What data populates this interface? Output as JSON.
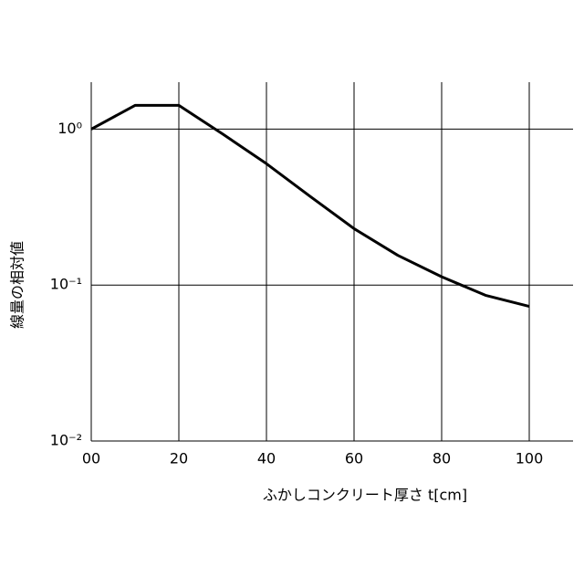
{
  "chart_data": {
    "type": "line",
    "xlabel": "ふかしコンクリート厚さ t[cm]",
    "ylabel": "線量の相対値",
    "x": [
      0,
      10,
      20,
      30,
      40,
      50,
      60,
      70,
      80,
      90,
      100
    ],
    "series": [
      {
        "color": "#000000",
        "values": [
          1.0,
          1.42,
          1.42,
          0.93,
          0.6,
          0.37,
          0.23,
          0.155,
          0.113,
          0.086,
          0.073
        ]
      }
    ],
    "xlim": [
      0,
      110
    ],
    "xticks": [
      {
        "value": 0,
        "label": "00"
      },
      20,
      40,
      60,
      80,
      100
    ],
    "ylim": [
      0.01,
      2
    ],
    "yticks": [
      {
        "value": 0.01,
        "label": "10⁻²"
      },
      {
        "value": 0.1,
        "label": "10⁻¹"
      },
      {
        "value": 1,
        "label": "10⁰"
      }
    ],
    "yscale": "log",
    "grid": true
  }
}
